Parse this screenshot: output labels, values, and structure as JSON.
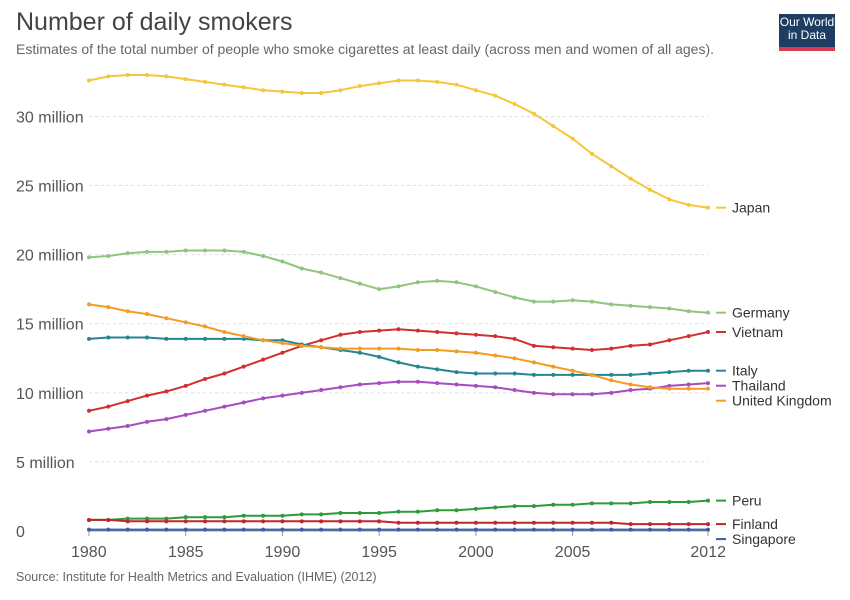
{
  "header": {
    "title": "Number of daily smokers",
    "subtitle": "Estimates of the total number of people who smoke cigarettes at least daily (across men and women of all ages).",
    "logo_line1": "Our World",
    "logo_line2": "in Data"
  },
  "footer": {
    "source": "Source: Institute for Health Metrics and Evaluation (IHME) (2012)"
  },
  "chart_data": {
    "type": "line",
    "title": "Number of daily smokers",
    "xlabel": "",
    "ylabel": "",
    "xlim": [
      1980,
      2012
    ],
    "ylim": [
      0,
      33000000
    ],
    "x_ticks": [
      1980,
      1985,
      1990,
      1995,
      2000,
      2005,
      2012
    ],
    "x_tick_labels": [
      "1980",
      "1985",
      "1990",
      "1995",
      "2000",
      "2005",
      "2012"
    ],
    "y_ticks": [
      0,
      5000000,
      10000000,
      15000000,
      20000000,
      25000000,
      30000000
    ],
    "y_tick_labels": [
      "0",
      "5 million",
      "10 million",
      "15 million",
      "20 million",
      "25 million",
      "30 million"
    ],
    "grid": true,
    "legend": "right-end-labels",
    "x": [
      1980,
      1981,
      1982,
      1983,
      1984,
      1985,
      1986,
      1987,
      1988,
      1989,
      1990,
      1991,
      1992,
      1993,
      1994,
      1995,
      1996,
      1997,
      1998,
      1999,
      2000,
      2001,
      2002,
      2003,
      2004,
      2005,
      2006,
      2007,
      2008,
      2009,
      2010,
      2011,
      2012
    ],
    "series": [
      {
        "name": "Japan",
        "color": "#f5c63c",
        "values": [
          32600000,
          32900000,
          33000000,
          33000000,
          32900000,
          32700000,
          32500000,
          32300000,
          32100000,
          31900000,
          31800000,
          31700000,
          31700000,
          31900000,
          32200000,
          32400000,
          32600000,
          32600000,
          32500000,
          32300000,
          31900000,
          31500000,
          30900000,
          30200000,
          29300000,
          28400000,
          27300000,
          26400000,
          25500000,
          24700000,
          24000000,
          23600000,
          23400000
        ]
      },
      {
        "name": "Germany",
        "color": "#91c47e",
        "values": [
          19800000,
          19900000,
          20100000,
          20200000,
          20200000,
          20300000,
          20300000,
          20300000,
          20200000,
          19900000,
          19500000,
          19000000,
          18700000,
          18300000,
          17900000,
          17500000,
          17700000,
          18000000,
          18100000,
          18000000,
          17700000,
          17300000,
          16900000,
          16600000,
          16600000,
          16700000,
          16600000,
          16400000,
          16300000,
          16200000,
          16100000,
          15900000,
          15800000
        ]
      },
      {
        "name": "Vietnam",
        "color": "#d32f2f",
        "values": [
          8700000,
          9000000,
          9400000,
          9800000,
          10100000,
          10500000,
          11000000,
          11400000,
          11900000,
          12400000,
          12900000,
          13400000,
          13800000,
          14200000,
          14400000,
          14500000,
          14600000,
          14500000,
          14400000,
          14300000,
          14200000,
          14100000,
          13900000,
          13400000,
          13300000,
          13200000,
          13100000,
          13200000,
          13400000,
          13500000,
          13800000,
          14100000,
          14400000
        ]
      },
      {
        "name": "Italy",
        "color": "#268690",
        "values": [
          13900000,
          14000000,
          14000000,
          14000000,
          13900000,
          13900000,
          13900000,
          13900000,
          13900000,
          13800000,
          13800000,
          13500000,
          13300000,
          13100000,
          12900000,
          12600000,
          12200000,
          11900000,
          11700000,
          11500000,
          11400000,
          11400000,
          11400000,
          11300000,
          11300000,
          11300000,
          11300000,
          11300000,
          11300000,
          11400000,
          11500000,
          11600000,
          11600000
        ]
      },
      {
        "name": "Thailand",
        "color": "#a54cbf",
        "values": [
          7200000,
          7400000,
          7600000,
          7900000,
          8100000,
          8400000,
          8700000,
          9000000,
          9300000,
          9600000,
          9800000,
          10000000,
          10200000,
          10400000,
          10600000,
          10700000,
          10800000,
          10800000,
          10700000,
          10600000,
          10500000,
          10400000,
          10200000,
          10000000,
          9900000,
          9900000,
          9900000,
          10000000,
          10200000,
          10300000,
          10500000,
          10600000,
          10700000
        ]
      },
      {
        "name": "United Kingdom",
        "color": "#f39c21",
        "values": [
          16400000,
          16200000,
          15900000,
          15700000,
          15400000,
          15100000,
          14800000,
          14400000,
          14100000,
          13800000,
          13600000,
          13400000,
          13300000,
          13200000,
          13200000,
          13200000,
          13200000,
          13100000,
          13100000,
          13000000,
          12900000,
          12700000,
          12500000,
          12200000,
          11900000,
          11600000,
          11300000,
          10900000,
          10600000,
          10400000,
          10300000,
          10300000,
          10300000
        ]
      },
      {
        "name": "Peru",
        "color": "#2e9a3b",
        "values": [
          800000,
          800000,
          900000,
          900000,
          900000,
          1000000,
          1000000,
          1000000,
          1100000,
          1100000,
          1100000,
          1200000,
          1200000,
          1300000,
          1300000,
          1300000,
          1400000,
          1400000,
          1500000,
          1500000,
          1600000,
          1700000,
          1800000,
          1800000,
          1900000,
          1900000,
          2000000,
          2000000,
          2000000,
          2100000,
          2100000,
          2100000,
          2200000
        ]
      },
      {
        "name": "Finland",
        "color": "#c0262d",
        "values": [
          800000,
          800000,
          700000,
          700000,
          700000,
          700000,
          700000,
          700000,
          700000,
          700000,
          700000,
          700000,
          700000,
          700000,
          700000,
          700000,
          600000,
          600000,
          600000,
          600000,
          600000,
          600000,
          600000,
          600000,
          600000,
          600000,
          600000,
          600000,
          500000,
          500000,
          500000,
          500000,
          500000
        ]
      },
      {
        "name": "Singapore",
        "color": "#3a5ea8",
        "values": [
          100000,
          100000,
          100000,
          100000,
          100000,
          100000,
          100000,
          100000,
          100000,
          100000,
          100000,
          100000,
          100000,
          100000,
          100000,
          100000,
          100000,
          100000,
          100000,
          100000,
          100000,
          100000,
          100000,
          100000,
          100000,
          100000,
          100000,
          100000,
          100000,
          100000,
          100000,
          100000,
          100000
        ]
      }
    ]
  }
}
